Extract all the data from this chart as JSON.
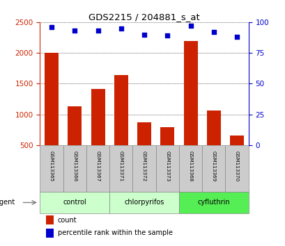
{
  "title": "GDS2215 / 204881_s_at",
  "samples": [
    "GSM113365",
    "GSM113366",
    "GSM113367",
    "GSM113371",
    "GSM113372",
    "GSM113373",
    "GSM113368",
    "GSM113369",
    "GSM113370"
  ],
  "counts": [
    2000,
    1130,
    1420,
    1640,
    870,
    790,
    2190,
    1070,
    660
  ],
  "percentile_ranks": [
    96,
    93,
    93,
    95,
    90,
    89,
    97,
    92,
    88
  ],
  "groups": [
    {
      "label": "control",
      "indices": [
        0,
        1,
        2
      ],
      "color": "#ccffcc"
    },
    {
      "label": "chlorpyrifos",
      "indices": [
        3,
        4,
        5
      ],
      "color": "#ccffcc"
    },
    {
      "label": "cyfluthrin",
      "indices": [
        6,
        7,
        8
      ],
      "color": "#55ee55"
    }
  ],
  "bar_color": "#cc2200",
  "scatter_color": "#0000cc",
  "ylim_left": [
    500,
    2500
  ],
  "ylim_right": [
    0,
    100
  ],
  "yticks_left": [
    500,
    1000,
    1500,
    2000,
    2500
  ],
  "yticks_right": [
    0,
    25,
    50,
    75,
    100
  ],
  "legend_count_label": "count",
  "legend_pct_label": "percentile rank within the sample",
  "agent_label": "agent",
  "bar_width": 0.6,
  "sample_box_color": "#cccccc",
  "grid_color": "black",
  "grid_lw": 0.5
}
